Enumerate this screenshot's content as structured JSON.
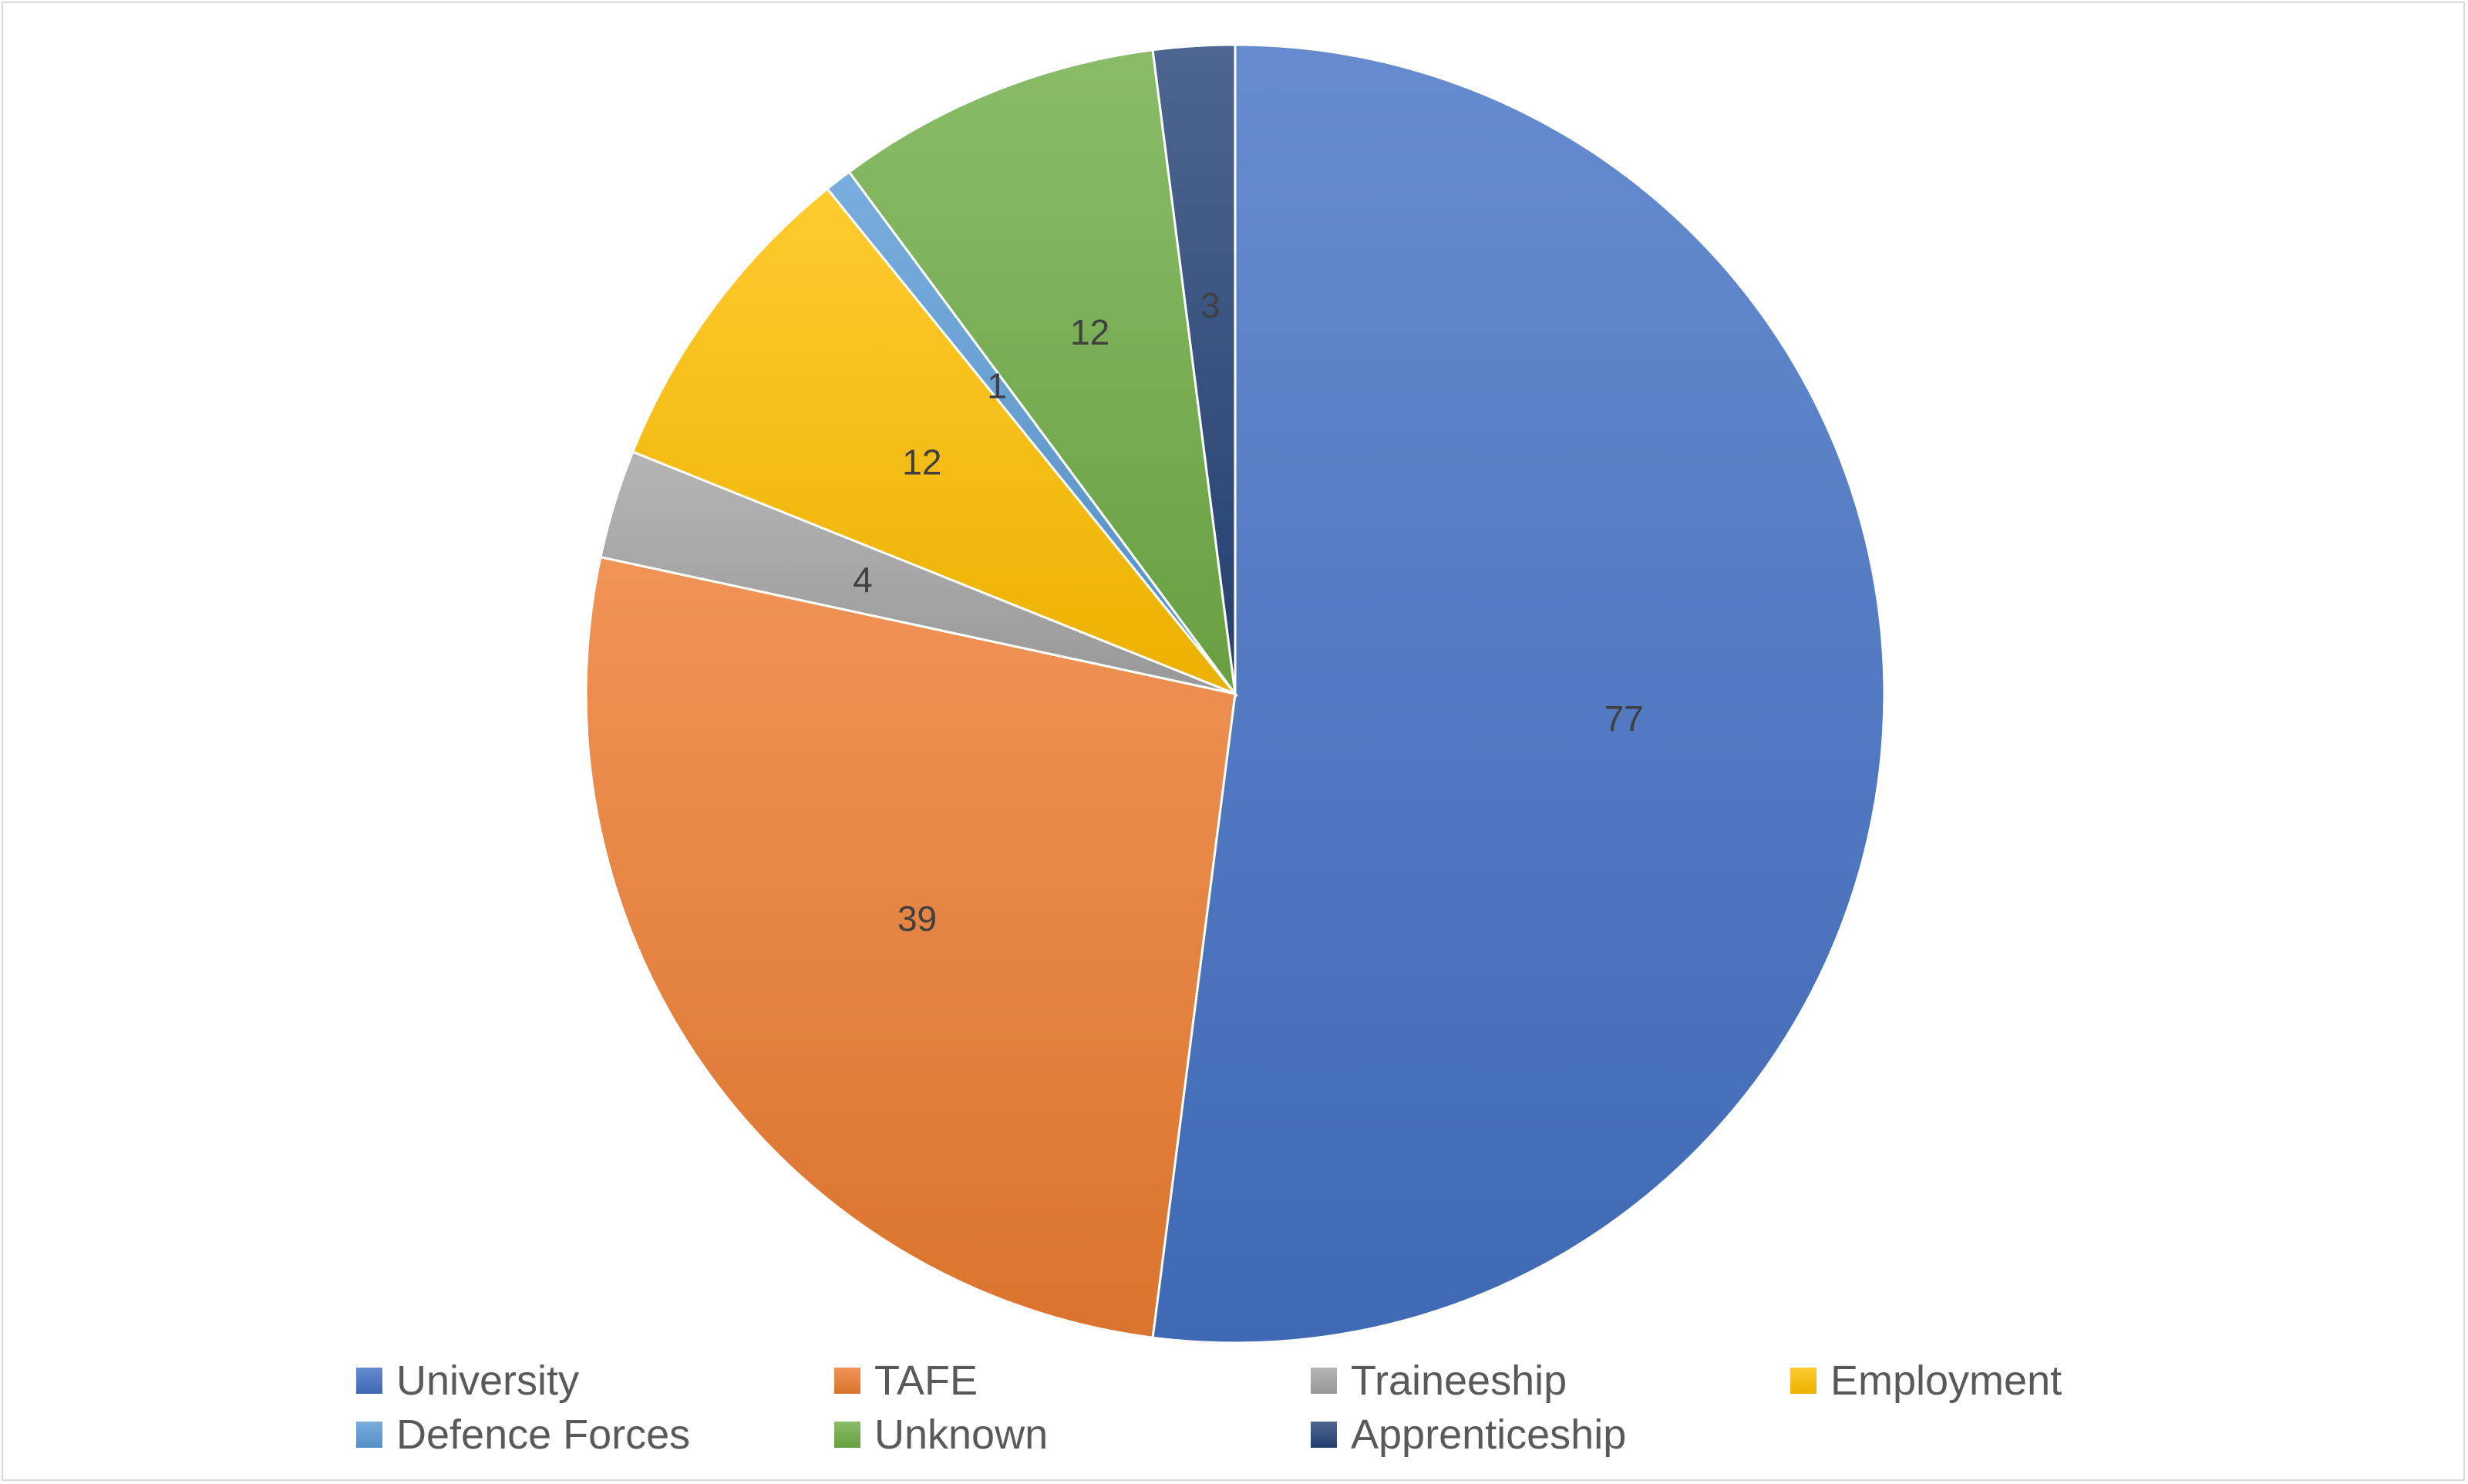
{
  "chart_data": {
    "type": "pie",
    "title": "",
    "start_angle_deg": 0,
    "direction": "clockwise",
    "legend_position": "bottom",
    "data_labels": true,
    "slices": [
      {
        "name": "University",
        "value": 77,
        "label": "77",
        "color": "#4472C4"
      },
      {
        "name": "TAFE",
        "value": 39,
        "label": "39",
        "color": "#ED7D31"
      },
      {
        "name": "Traineeship",
        "value": 4,
        "label": "4",
        "color": "#A5A5A5"
      },
      {
        "name": "Employment",
        "value": 12,
        "label": "12",
        "color": "#FFC000"
      },
      {
        "name": "Defence Forces",
        "value": 1,
        "label": "1",
        "color": "#5B9BD5"
      },
      {
        "name": "Unknown",
        "value": 12,
        "label": "12",
        "color": "#70AD47"
      },
      {
        "name": "Apprenticeship",
        "value": 3,
        "label": "3",
        "color": "#264478"
      }
    ]
  }
}
